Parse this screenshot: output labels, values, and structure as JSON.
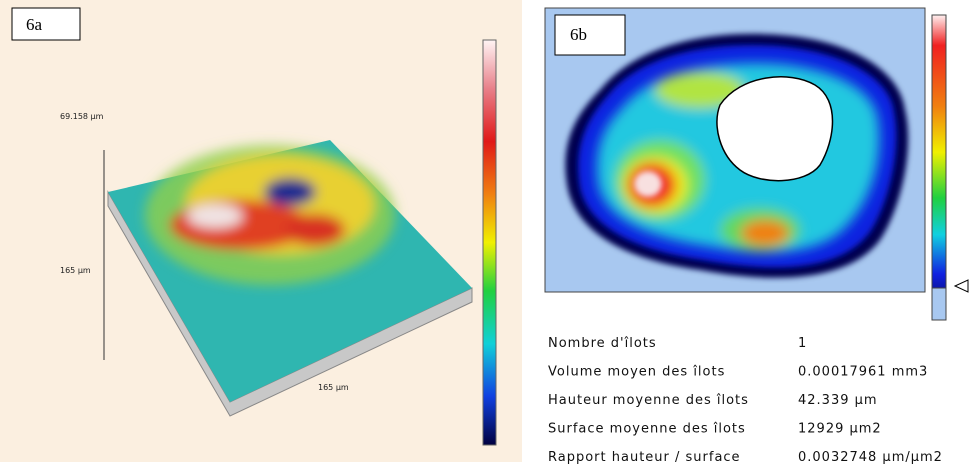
{
  "panel_a": {
    "label": "6a",
    "axis_labels": [
      "69.158 µm",
      "165 µm",
      "165 µm"
    ]
  },
  "panel_b": {
    "label": "6b",
    "table": {
      "rows": [
        [
          "Nombre d'îlots",
          "1"
        ],
        [
          "Volume moyen des îlots",
          "0.00017961 mm3"
        ],
        [
          "Hauteur moyenne des îlots",
          "42.339 µm"
        ],
        [
          "Surface moyenne des îlots",
          "12929 µm2"
        ],
        [
          "Rapport hauteur / surface",
          "0.0032748 µm/µm2"
        ]
      ]
    }
  }
}
